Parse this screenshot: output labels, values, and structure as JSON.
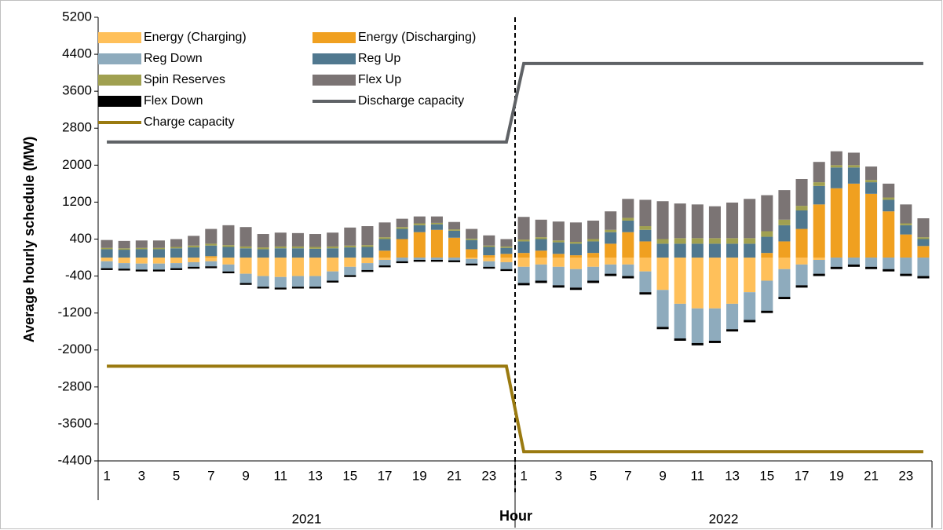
{
  "chart_data": {
    "type": "bar",
    "stacked": true,
    "y_label": "Average hourly schedule (MW)",
    "x_label": "Hour",
    "groups": [
      "2021",
      "2022"
    ],
    "categories": [
      "1",
      null,
      "3",
      null,
      "5",
      null,
      "7",
      null,
      "9",
      null,
      "11",
      null,
      "13",
      null,
      "15",
      null,
      "17",
      null,
      "19",
      null,
      "21",
      null,
      "23",
      null,
      "1",
      null,
      "3",
      null,
      "5",
      null,
      "7",
      null,
      "9",
      null,
      "11",
      null,
      "13",
      null,
      "15",
      null,
      "17",
      null,
      "19",
      null,
      "21",
      null,
      "23",
      null
    ],
    "ylim": [
      -4400,
      5200
    ],
    "yticks": [
      -4400,
      -3600,
      -2800,
      -2000,
      -1200,
      -400,
      400,
      1200,
      2000,
      2800,
      3600,
      4400,
      5200
    ],
    "series": [
      {
        "name": "Energy (Charging)",
        "color": "#ffc05a",
        "values": [
          -80,
          -120,
          -130,
          -130,
          -120,
          -100,
          -80,
          -150,
          -350,
          -400,
          -420,
          -400,
          -400,
          -300,
          -200,
          -120,
          -50,
          0,
          0,
          0,
          0,
          -30,
          -80,
          -100,
          -200,
          -150,
          -200,
          -250,
          -200,
          -150,
          -150,
          -300,
          -700,
          -1000,
          -1100,
          -1100,
          -1000,
          -750,
          -500,
          -250,
          -150,
          -50,
          0,
          0,
          0,
          0,
          0,
          0
        ]
      },
      {
        "name": "Energy (Discharging)",
        "color": "#f0a020",
        "values": [
          0,
          0,
          0,
          0,
          0,
          0,
          30,
          0,
          0,
          0,
          0,
          0,
          0,
          0,
          0,
          0,
          150,
          400,
          550,
          600,
          430,
          180,
          50,
          80,
          100,
          150,
          80,
          50,
          100,
          300,
          550,
          350,
          0,
          0,
          0,
          0,
          0,
          0,
          100,
          350,
          620,
          1150,
          1500,
          1600,
          1380,
          1000,
          500,
          250
        ]
      },
      {
        "name": "Reg Down",
        "color": "#8eabbd",
        "values": [
          -150,
          -120,
          -130,
          -130,
          -110,
          -100,
          -110,
          -150,
          -200,
          -230,
          -230,
          -230,
          -230,
          -200,
          -180,
          -150,
          -120,
          -80,
          -50,
          -50,
          -60,
          -100,
          -120,
          -150,
          -350,
          -350,
          -400,
          -400,
          -300,
          -200,
          -250,
          -450,
          -800,
          -750,
          -750,
          -700,
          -550,
          -600,
          -650,
          -600,
          -450,
          -300,
          -200,
          -150,
          -200,
          -250,
          -350,
          -400
        ]
      },
      {
        "name": "Reg Up",
        "color": "#50788f",
        "values": [
          180,
          170,
          180,
          180,
          200,
          220,
          230,
          230,
          200,
          180,
          200,
          200,
          190,
          200,
          220,
          230,
          250,
          220,
          150,
          120,
          150,
          200,
          180,
          130,
          250,
          250,
          250,
          250,
          250,
          250,
          250,
          250,
          300,
          300,
          300,
          300,
          300,
          300,
          350,
          350,
          400,
          400,
          450,
          350,
          250,
          250,
          200,
          150
        ]
      },
      {
        "name": "Spin Reserves",
        "color": "#a0a050",
        "values": [
          30,
          30,
          30,
          30,
          30,
          40,
          40,
          40,
          40,
          40,
          40,
          40,
          40,
          40,
          40,
          40,
          40,
          40,
          40,
          30,
          30,
          30,
          30,
          30,
          40,
          40,
          40,
          40,
          50,
          50,
          60,
          80,
          100,
          120,
          120,
          120,
          120,
          120,
          120,
          120,
          100,
          80,
          50,
          50,
          50,
          50,
          40,
          40
        ]
      },
      {
        "name": "Flex Up",
        "color": "#7b7474",
        "values": [
          170,
          160,
          160,
          160,
          170,
          210,
          320,
          430,
          420,
          290,
          300,
          290,
          280,
          300,
          390,
          410,
          320,
          180,
          150,
          140,
          160,
          210,
          220,
          160,
          490,
          380,
          410,
          420,
          400,
          400,
          410,
          570,
          820,
          750,
          730,
          690,
          770,
          850,
          780,
          640,
          580,
          440,
          300,
          270,
          290,
          300,
          410,
          410
        ]
      },
      {
        "name": "Flex Down",
        "color": "#000000",
        "values": [
          -40,
          -40,
          -40,
          -40,
          -40,
          -40,
          -40,
          -40,
          -40,
          -40,
          -40,
          -40,
          -40,
          -40,
          -40,
          -40,
          -40,
          -40,
          -40,
          -40,
          -40,
          -40,
          -40,
          -40,
          -50,
          -50,
          -50,
          -50,
          -50,
          -50,
          -50,
          -50,
          -50,
          -50,
          -50,
          -50,
          -50,
          -50,
          -50,
          -50,
          -50,
          -50,
          -50,
          -50,
          -50,
          -50,
          -50,
          -50
        ]
      },
      {
        "name": "Discharge capacity",
        "type": "line",
        "color": "#5f6266",
        "values": [
          2500,
          2500,
          2500,
          2500,
          2500,
          2500,
          2500,
          2500,
          2500,
          2500,
          2500,
          2500,
          2500,
          2500,
          2500,
          2500,
          2500,
          2500,
          2500,
          2500,
          2500,
          2500,
          2500,
          2500,
          4200,
          4200,
          4200,
          4200,
          4200,
          4200,
          4200,
          4200,
          4200,
          4200,
          4200,
          4200,
          4200,
          4200,
          4200,
          4200,
          4200,
          4200,
          4200,
          4200,
          4200,
          4200,
          4200,
          4200
        ]
      },
      {
        "name": "Charge capacity",
        "type": "line",
        "color": "#9a7a10",
        "values": [
          -2350,
          -2350,
          -2350,
          -2350,
          -2350,
          -2350,
          -2350,
          -2350,
          -2350,
          -2350,
          -2350,
          -2350,
          -2350,
          -2350,
          -2350,
          -2350,
          -2350,
          -2350,
          -2350,
          -2350,
          -2350,
          -2350,
          -2350,
          -2350,
          -4200,
          -4200,
          -4200,
          -4200,
          -4200,
          -4200,
          -4200,
          -4200,
          -4200,
          -4200,
          -4200,
          -4200,
          -4200,
          -4200,
          -4200,
          -4200,
          -4200,
          -4200,
          -4200,
          -4200,
          -4200,
          -4200,
          -4200,
          -4200
        ]
      }
    ]
  }
}
